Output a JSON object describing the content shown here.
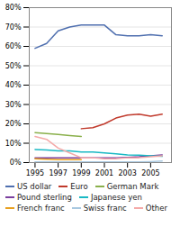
{
  "chart_data": {
    "type": "line",
    "x": [
      1995,
      1996,
      1997,
      1998,
      1999,
      2000,
      2001,
      2002,
      2003,
      2004,
      2005,
      2006
    ],
    "series": [
      {
        "name": "US dollar",
        "color": "#4f6faf",
        "values": [
          59,
          61.5,
          68,
          70,
          71,
          71,
          71,
          66,
          65.5,
          65.5,
          66,
          65.5
        ]
      },
      {
        "name": "Euro",
        "color": "#c0392b",
        "values": [
          null,
          null,
          null,
          null,
          17.5,
          18,
          20,
          23,
          24.5,
          25,
          24,
          25
        ]
      },
      {
        "name": "German Mark",
        "color": "#8ab04b",
        "values": [
          15.5,
          15,
          14.5,
          14,
          13.5,
          null,
          null,
          null,
          null,
          null,
          null,
          null
        ]
      },
      {
        "name": "Pound sterling",
        "color": "#7b3f9e",
        "values": [
          2.5,
          2.5,
          2.5,
          2.5,
          2.5,
          2.5,
          2.5,
          2.5,
          2.7,
          3.0,
          3.5,
          4.0
        ]
      },
      {
        "name": "Japanese yen",
        "color": "#1ab9c4",
        "values": [
          6.8,
          6.5,
          6.0,
          6.0,
          5.5,
          5.5,
          5.0,
          4.5,
          4.0,
          3.8,
          3.5,
          3.2
        ]
      },
      {
        "name": "French franc",
        "color": "#e8a020",
        "values": [
          2.0,
          1.8,
          1.5,
          1.5,
          1.5,
          null,
          null,
          null,
          null,
          null,
          null,
          null
        ]
      },
      {
        "name": "Swiss franc",
        "color": "#a8c8e0",
        "values": [
          0.3,
          0.3,
          0.3,
          0.3,
          0.3,
          0.3,
          0.3,
          0.3,
          0.3,
          0.3,
          0.5,
          0.8
        ]
      },
      {
        "name": "Other",
        "color": "#f4a9a8",
        "values": [
          13.5,
          12.0,
          7.5,
          5.0,
          2.5,
          2.5,
          2.0,
          2.0,
          2.5,
          2.5,
          3.0,
          3.5
        ]
      }
    ],
    "xlim": [
      1994.5,
      2006.8
    ],
    "xticks": [
      1995,
      1997,
      1999,
      2001,
      2003,
      2005
    ],
    "ylim": [
      0,
      80
    ],
    "yticks": [
      {
        "value": 0,
        "label": "0%"
      },
      {
        "value": 10,
        "label": "10%"
      },
      {
        "value": 20,
        "label": "20%"
      },
      {
        "value": 30,
        "label": "30%"
      },
      {
        "value": 40,
        "label": "40%"
      },
      {
        "value": 50,
        "label": "50%"
      },
      {
        "value": 60,
        "label": "60%"
      },
      {
        "value": 70,
        "label": "70%"
      },
      {
        "value": 80,
        "label": "80%"
      }
    ],
    "grid": true,
    "legend": "bottom"
  }
}
